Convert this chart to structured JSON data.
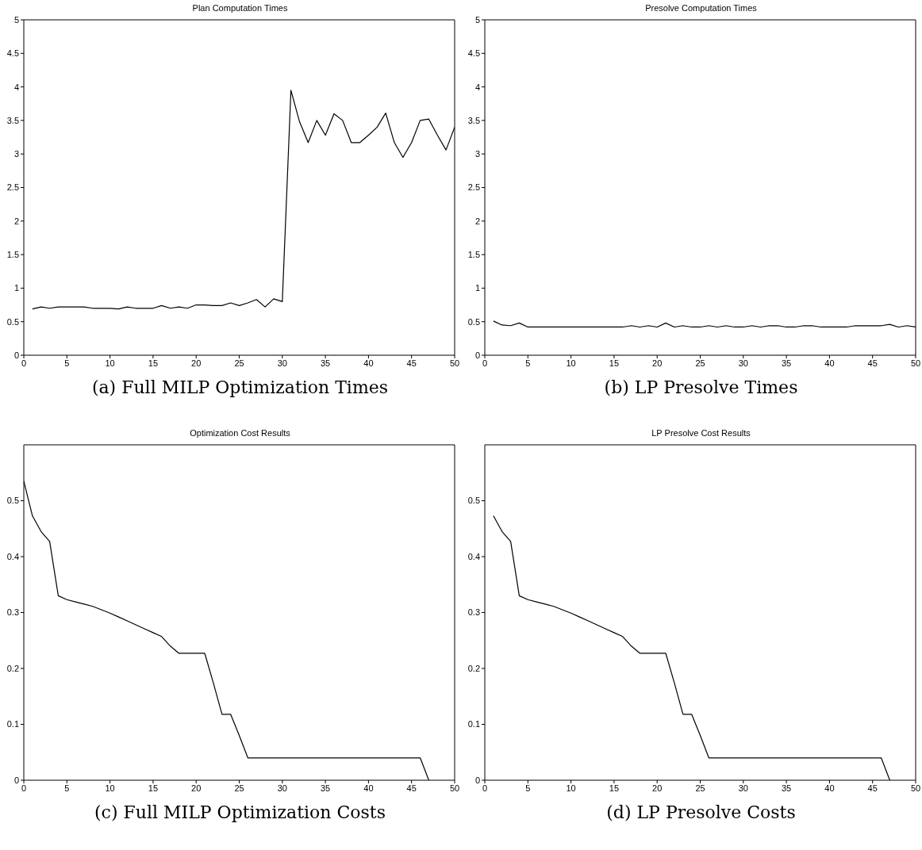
{
  "chart_data": [
    {
      "type": "line",
      "title": "Plan Computation Times",
      "annotations": [
        "(a) Full MILP Optimization Times"
      ],
      "xlim": [
        0,
        50
      ],
      "xticks": [
        0,
        5,
        10,
        15,
        20,
        25,
        30,
        35,
        40,
        45,
        50
      ],
      "ylim": [
        0,
        5
      ],
      "yticks": [
        0,
        0.5,
        1,
        1.5,
        2,
        2.5,
        3,
        3.5,
        4,
        4.5,
        5
      ],
      "grid": false,
      "legend": false,
      "marker": "none",
      "line_style": "solid",
      "x": [
        1,
        2,
        3,
        4,
        5,
        6,
        7,
        8,
        9,
        10,
        11,
        12,
        13,
        14,
        15,
        16,
        17,
        18,
        19,
        20,
        21,
        22,
        23,
        24,
        25,
        26,
        27,
        28,
        29,
        30,
        31,
        32,
        33,
        34,
        35,
        36,
        37,
        38,
        39,
        40,
        41,
        42,
        43,
        44,
        45,
        46,
        47,
        48,
        49,
        50
      ],
      "series": [
        {
          "color": "#000000",
          "values": [
            0.69,
            0.72,
            0.7,
            0.72,
            0.72,
            0.72,
            0.72,
            0.7,
            0.7,
            0.7,
            0.69,
            0.72,
            0.7,
            0.7,
            0.7,
            0.74,
            0.7,
            0.72,
            0.7,
            0.75,
            0.75,
            0.74,
            0.74,
            0.78,
            0.74,
            0.78,
            0.83,
            0.72,
            0.84,
            0.8,
            3.95,
            3.48,
            3.17,
            3.5,
            3.28,
            3.6,
            3.5,
            3.17,
            3.17,
            3.28,
            3.4,
            3.61,
            3.17,
            2.95,
            3.17,
            3.5,
            3.52,
            3.28,
            3.06,
            3.4
          ]
        }
      ]
    },
    {
      "type": "line",
      "title": "Presolve Computation Times",
      "annotations": [
        "(b) LP Presolve Times"
      ],
      "xlim": [
        0,
        50
      ],
      "xticks": [
        0,
        5,
        10,
        15,
        20,
        25,
        30,
        35,
        40,
        45,
        50
      ],
      "ylim": [
        0,
        5
      ],
      "yticks": [
        0,
        0.5,
        1,
        1.5,
        2,
        2.5,
        3,
        3.5,
        4,
        4.5,
        5
      ],
      "grid": false,
      "legend": false,
      "marker": "none",
      "line_style": "solid",
      "x": [
        1,
        2,
        3,
        4,
        5,
        6,
        7,
        8,
        9,
        10,
        11,
        12,
        13,
        14,
        15,
        16,
        17,
        18,
        19,
        20,
        21,
        22,
        23,
        24,
        25,
        26,
        27,
        28,
        29,
        30,
        31,
        32,
        33,
        34,
        35,
        36,
        37,
        38,
        39,
        40,
        41,
        42,
        43,
        44,
        45,
        46,
        47,
        48,
        49,
        50
      ],
      "series": [
        {
          "color": "#000000",
          "values": [
            0.51,
            0.45,
            0.44,
            0.48,
            0.42,
            0.42,
            0.42,
            0.42,
            0.42,
            0.42,
            0.42,
            0.42,
            0.42,
            0.42,
            0.42,
            0.42,
            0.44,
            0.42,
            0.44,
            0.42,
            0.48,
            0.42,
            0.44,
            0.42,
            0.42,
            0.44,
            0.42,
            0.44,
            0.42,
            0.42,
            0.44,
            0.42,
            0.44,
            0.44,
            0.42,
            0.42,
            0.44,
            0.44,
            0.42,
            0.42,
            0.42,
            0.42,
            0.44,
            0.44,
            0.44,
            0.44,
            0.46,
            0.42,
            0.44,
            0.42
          ]
        }
      ]
    },
    {
      "type": "line",
      "title": "Optimization Cost Results",
      "annotations": [
        "(c) Full MILP Optimization Costs"
      ],
      "xlim": [
        0,
        50
      ],
      "xticks": [
        0,
        5,
        10,
        15,
        20,
        25,
        30,
        35,
        40,
        45,
        50
      ],
      "ylim": [
        0,
        0.6
      ],
      "yticks": [
        0,
        0.1,
        0.2,
        0.3,
        0.4,
        0.5
      ],
      "grid": false,
      "legend": false,
      "marker": "none",
      "line_style": "solid",
      "x": [
        0,
        1,
        2,
        3,
        4,
        5,
        6,
        7,
        8,
        9,
        10,
        11,
        12,
        13,
        14,
        15,
        16,
        17,
        18,
        19,
        20,
        21,
        22,
        23,
        24,
        25,
        26,
        46,
        47
      ],
      "series": [
        {
          "color": "#000000",
          "values": [
            0.535,
            0.473,
            0.445,
            0.427,
            0.33,
            0.323,
            0.319,
            0.315,
            0.311,
            0.305,
            0.299,
            0.292,
            0.285,
            0.278,
            0.271,
            0.264,
            0.257,
            0.24,
            0.227,
            0.227,
            0.227,
            0.227,
            0.174,
            0.118,
            0.118,
            0.08,
            0.04,
            0.04,
            0
          ]
        }
      ]
    },
    {
      "type": "line",
      "title": "LP Presolve Cost Results",
      "annotations": [
        "(d) LP Presolve Costs"
      ],
      "xlim": [
        0,
        50
      ],
      "xticks": [
        0,
        5,
        10,
        15,
        20,
        25,
        30,
        35,
        40,
        45,
        50
      ],
      "ylim": [
        0,
        0.6
      ],
      "yticks": [
        0,
        0.1,
        0.2,
        0.3,
        0.4,
        0.5
      ],
      "grid": false,
      "legend": false,
      "marker": "none",
      "line_style": "solid",
      "x": [
        1,
        2,
        3,
        4,
        5,
        6,
        7,
        8,
        9,
        10,
        11,
        12,
        13,
        14,
        15,
        16,
        17,
        18,
        19,
        20,
        21,
        22,
        23,
        24,
        25,
        26,
        46,
        47
      ],
      "series": [
        {
          "color": "#000000",
          "values": [
            0.473,
            0.445,
            0.427,
            0.33,
            0.323,
            0.319,
            0.315,
            0.311,
            0.305,
            0.299,
            0.292,
            0.285,
            0.278,
            0.271,
            0.264,
            0.257,
            0.24,
            0.227,
            0.227,
            0.227,
            0.227,
            0.174,
            0.118,
            0.118,
            0.08,
            0.04,
            0.04,
            0
          ]
        }
      ]
    }
  ]
}
